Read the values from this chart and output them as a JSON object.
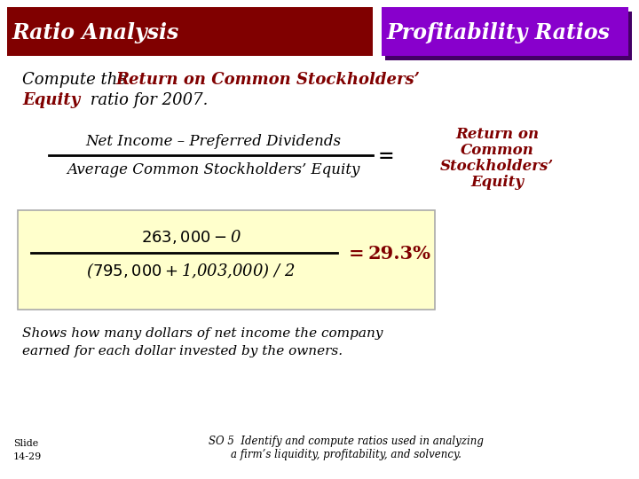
{
  "title_left": "Ratio Analysis",
  "title_right": "Profitability Ratios",
  "title_left_bg": "#800000",
  "title_right_bg": "#8800CC",
  "title_text_color": "#FFFFFF",
  "dark_red": "#800000",
  "black": "#000000",
  "white": "#FFFFFF",
  "bg_color": "#FFFFFF",
  "box_bg": "#FFFFCC",
  "box_border": "#CCCC88",
  "formula_numerator": "Net Income – Preferred Dividends",
  "formula_denominator": "Average Common Stockholders’ Equity",
  "formula_result_line1": "Return on",
  "formula_result_line2": "Common",
  "formula_result_line3": "Stockholders’",
  "formula_result_line4": "Equity",
  "box_numerator": "$263,000 - $0",
  "box_denominator": "($795,000 + $1,003,000) / 2",
  "footer_line1": "Shows how many dollars of net income the company",
  "footer_line2": "earned for each dollar invested by the owners.",
  "so_text": "SO 5  Identify and compute ratios used in analyzing\na firm’s liquidity, profitability, and solvency."
}
